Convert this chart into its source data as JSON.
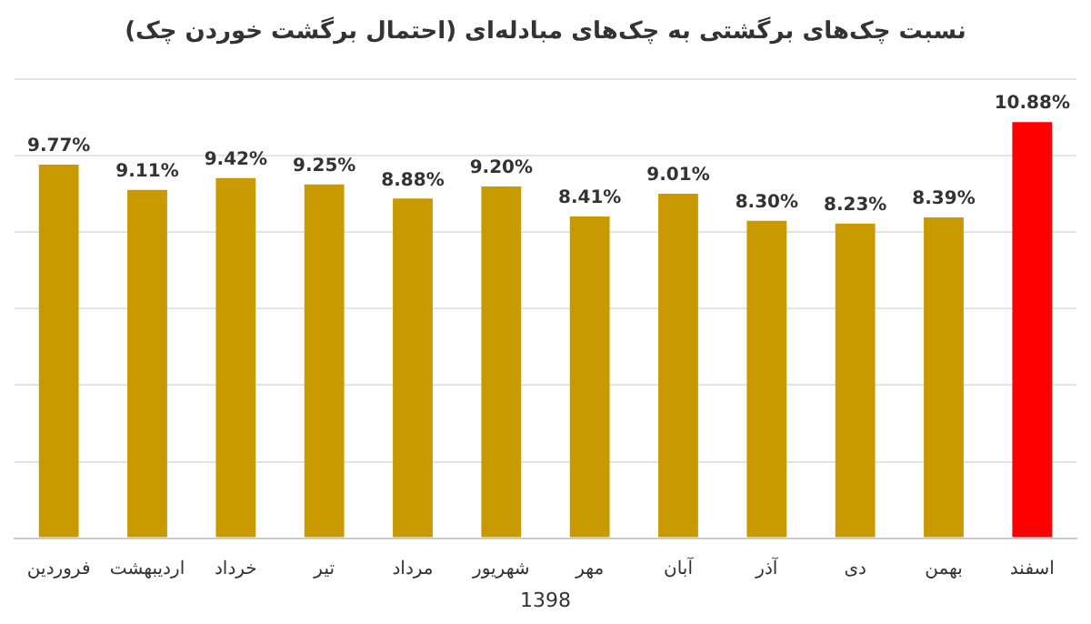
{
  "chart_data": {
    "type": "bar",
    "title": "نسبت چک‌های برگشتی به چک‌های مبادله‌ای (احتمال برگشت خوردن چک)",
    "xlabel": "1398",
    "categories": [
      "فروردین",
      "اردیبهشت",
      "خرداد",
      "تیر",
      "مرداد",
      "شهریور",
      "مهر",
      "آبان",
      "آذر",
      "دی",
      "بهمن",
      "اسفند"
    ],
    "values": [
      9.77,
      9.11,
      9.42,
      9.25,
      8.88,
      9.2,
      8.41,
      9.01,
      8.3,
      8.23,
      8.39,
      10.88
    ],
    "colors": [
      "#c89a00",
      "#c89a00",
      "#c89a00",
      "#c89a00",
      "#c89a00",
      "#c89a00",
      "#c89a00",
      "#c89a00",
      "#c89a00",
      "#c89a00",
      "#c89a00",
      "#ff0000"
    ],
    "value_labels": [
      "9.77%",
      "9.11%",
      "9.42%",
      "9.25%",
      "8.88%",
      "9.20%",
      "8.41%",
      "9.01%",
      "8.30%",
      "8.23%",
      "8.39%",
      "10.88%"
    ],
    "ylim": [
      0,
      12
    ],
    "yticks": [
      {
        "value": 0,
        "label": null
      },
      {
        "value": 2,
        "label": null
      },
      {
        "value": 4,
        "label": null
      },
      {
        "value": 6,
        "label": null
      },
      {
        "value": 8,
        "label": null
      },
      {
        "value": 10,
        "label": null
      },
      {
        "value": 12,
        "label": null
      }
    ],
    "grid": "y",
    "tick_labels": "x",
    "legend": false
  }
}
